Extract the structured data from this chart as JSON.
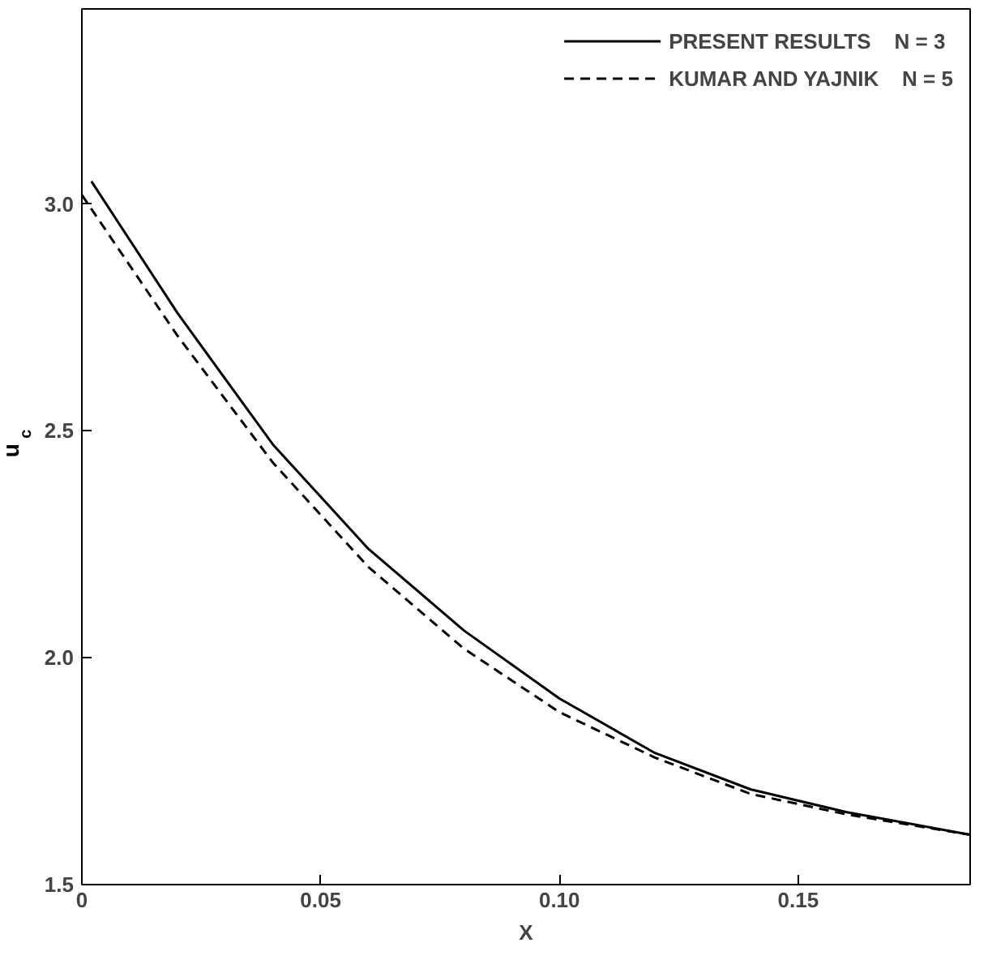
{
  "chart_data": {
    "type": "line",
    "xlabel": "X",
    "ylabel": "u$_{c}$",
    "xlim": [
      0,
      0.186
    ],
    "ylim": [
      1.5,
      3.43
    ],
    "xticks": [
      {
        "value": 0,
        "label": "0"
      },
      0.05,
      {
        "value": 0.1,
        "label": "0.10"
      },
      0.15
    ],
    "yticks": [
      1.5,
      {
        "value": 2,
        "label": "2.0"
      },
      2.5,
      {
        "value": 3,
        "label": "3.0"
      }
    ],
    "grid": false,
    "legend": "top right",
    "marker": "none",
    "series": [
      {
        "name": "PRESENT RESULTS    N = 3",
        "color": "#000000",
        "line_style": "solid",
        "x": [
          0.002,
          0.02,
          0.04,
          0.06,
          0.08,
          0.1,
          0.12,
          0.14,
          0.16,
          0.186
        ],
        "values": [
          3.05,
          2.76,
          2.47,
          2.24,
          2.06,
          1.91,
          1.79,
          1.71,
          1.66,
          1.61
        ]
      },
      {
        "name": "KUMAR AND YAJNIK    N = 5",
        "color": "#000000",
        "line_style": "dashed",
        "x": [
          0,
          0.02,
          0.04,
          0.06,
          0.08,
          0.1,
          0.12,
          0.14,
          0.16,
          0.186
        ],
        "values": [
          3.02,
          2.71,
          2.43,
          2.2,
          2.02,
          1.88,
          1.78,
          1.7,
          1.655,
          1.61
        ]
      }
    ]
  }
}
